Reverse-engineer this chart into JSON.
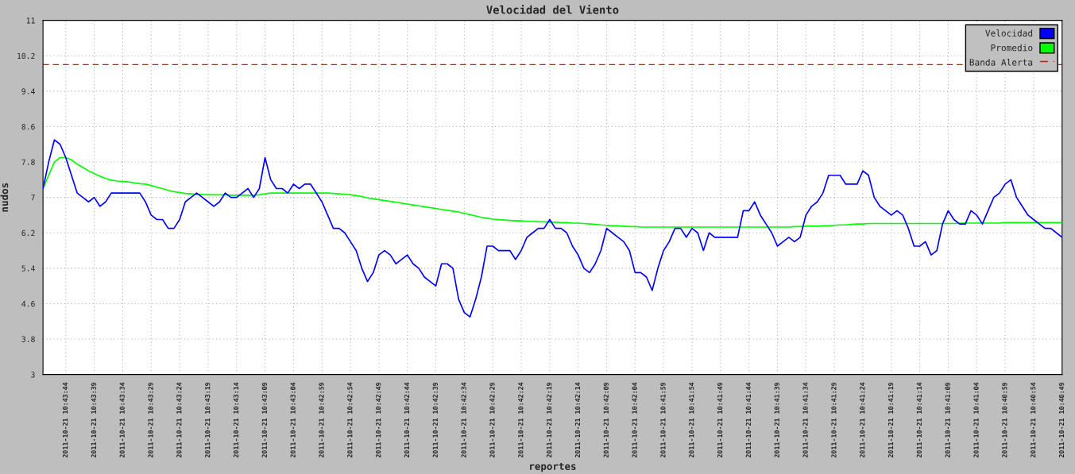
{
  "chart_data": {
    "type": "line",
    "title": "Velocidad del Viento",
    "xlabel": "reportes",
    "ylabel": "nudos",
    "categories": [
      null,
      null,
      null,
      null,
      "2011-10-21 10:43:44",
      null,
      null,
      null,
      null,
      "2011-10-21 10:43:39",
      null,
      null,
      null,
      null,
      "2011-10-21 10:43:34",
      null,
      null,
      null,
      null,
      "2011-10-21 10:43:29",
      null,
      null,
      null,
      null,
      "2011-10-21 10:43:24",
      null,
      null,
      null,
      null,
      "2011-10-21 10:43:19",
      null,
      null,
      null,
      null,
      "2011-10-21 10:43:14",
      null,
      null,
      null,
      null,
      "2011-10-21 10:43:09",
      null,
      null,
      null,
      null,
      "2011-10-21 10:43:04",
      null,
      null,
      null,
      null,
      "2011-10-21 10:42:59",
      null,
      null,
      null,
      null,
      "2011-10-21 10:42:54",
      null,
      null,
      null,
      null,
      "2011-10-21 10:42:49",
      null,
      null,
      null,
      null,
      "2011-10-21 10:42:44",
      null,
      null,
      null,
      null,
      "2011-10-21 10:42:39",
      null,
      null,
      null,
      null,
      "2011-10-21 10:42:34",
      null,
      null,
      null,
      null,
      "2011-10-21 10:42:29",
      null,
      null,
      null,
      null,
      "2011-10-21 10:42:24",
      null,
      null,
      null,
      null,
      "2011-10-21 10:42:19",
      null,
      null,
      null,
      null,
      "2011-10-21 10:42:14",
      null,
      null,
      null,
      null,
      "2011-10-21 10:42:09",
      null,
      null,
      null,
      null,
      "2011-10-21 10:42:04",
      null,
      null,
      null,
      null,
      "2011-10-21 10:41:59",
      null,
      null,
      null,
      null,
      "2011-10-21 10:41:54",
      null,
      null,
      null,
      null,
      "2011-10-21 10:41:49",
      null,
      null,
      null,
      null,
      "2011-10-21 10:41:44",
      null,
      null,
      null,
      null,
      "2011-10-21 10:41:39",
      null,
      null,
      null,
      null,
      "2011-10-21 10:41:34",
      null,
      null,
      null,
      null,
      "2011-10-21 10:41:29",
      null,
      null,
      null,
      null,
      "2011-10-21 10:41:24",
      null,
      null,
      null,
      null,
      "2011-10-21 10:41:19",
      null,
      null,
      null,
      null,
      "2011-10-21 10:41:14",
      null,
      null,
      null,
      null,
      "2011-10-21 10:41:09",
      null,
      null,
      null,
      null,
      "2011-10-21 10:41:04",
      null,
      null,
      null,
      null,
      "2011-10-21 10:40:59",
      null,
      null,
      null,
      null,
      "2011-10-21 10:40:54",
      null,
      null,
      null,
      null,
      "2011-10-21 10:40:49"
    ],
    "series": [
      {
        "name": "Velocidad",
        "color": "#0000ff",
        "values": [
          7.2,
          7.8,
          8.3,
          8.2,
          7.9,
          7.5,
          7.1,
          7.0,
          6.9,
          7.0,
          6.8,
          6.9,
          7.1,
          7.1,
          7.1,
          7.1,
          7.1,
          7.1,
          6.9,
          6.6,
          6.5,
          6.5,
          6.3,
          6.3,
          6.5,
          6.9,
          7.0,
          7.1,
          7.0,
          6.9,
          6.8,
          6.9,
          7.1,
          7.0,
          7.0,
          7.1,
          7.2,
          7.0,
          7.2,
          7.9,
          7.4,
          7.2,
          7.2,
          7.1,
          7.3,
          7.2,
          7.3,
          7.3,
          7.1,
          6.9,
          6.6,
          6.3,
          6.3,
          6.2,
          6.0,
          5.8,
          5.4,
          5.1,
          5.3,
          5.7,
          5.8,
          5.7,
          5.5,
          5.6,
          5.7,
          5.5,
          5.4,
          5.2,
          5.1,
          5.0,
          5.5,
          5.5,
          5.4,
          4.7,
          4.4,
          4.3,
          4.7,
          5.2,
          5.9,
          5.9,
          5.8,
          5.8,
          5.8,
          5.6,
          5.8,
          6.1,
          6.2,
          6.3,
          6.3,
          6.5,
          6.3,
          6.3,
          6.2,
          5.9,
          5.7,
          5.4,
          5.3,
          5.5,
          5.8,
          6.3,
          6.2,
          6.1,
          6.0,
          5.8,
          5.3,
          5.3,
          5.2,
          4.9,
          5.4,
          5.8,
          6.0,
          6.3,
          6.3,
          6.1,
          6.3,
          6.2,
          5.8,
          6.2,
          6.1,
          6.1,
          6.1,
          6.1,
          6.1,
          6.7,
          6.7,
          6.9,
          6.6,
          6.4,
          6.2,
          5.9,
          6.0,
          6.1,
          6.0,
          6.1,
          6.6,
          6.8,
          6.9,
          7.1,
          7.5,
          7.5,
          7.5,
          7.3,
          7.3,
          7.3,
          7.6,
          7.5,
          7.0,
          6.8,
          6.7,
          6.6,
          6.7,
          6.6,
          6.3,
          5.9,
          5.9,
          6.0,
          5.7,
          5.8,
          6.4,
          6.7,
          6.5,
          6.4,
          6.4,
          6.7,
          6.6,
          6.4,
          6.7,
          7.0,
          7.1,
          7.3,
          7.4,
          7.0,
          6.8,
          6.6,
          6.5,
          6.4,
          6.3,
          6.3,
          6.2,
          6.1
        ]
      },
      {
        "name": "Promedio",
        "color": "#00ff00",
        "values": [
          7.2,
          7.5,
          7.8,
          7.9,
          7.9,
          7.85,
          7.75,
          7.68,
          7.6,
          7.54,
          7.48,
          7.43,
          7.39,
          7.37,
          7.36,
          7.35,
          7.33,
          7.31,
          7.3,
          7.27,
          7.23,
          7.2,
          7.16,
          7.13,
          7.11,
          7.09,
          7.08,
          7.07,
          7.07,
          7.06,
          7.06,
          7.06,
          7.06,
          7.05,
          7.05,
          7.05,
          7.05,
          7.05,
          7.06,
          7.08,
          7.1,
          7.1,
          7.1,
          7.1,
          7.1,
          7.1,
          7.1,
          7.1,
          7.1,
          7.1,
          7.1,
          7.09,
          7.08,
          7.07,
          7.06,
          7.04,
          7.02,
          6.99,
          6.97,
          6.95,
          6.93,
          6.91,
          6.89,
          6.87,
          6.85,
          6.83,
          6.81,
          6.79,
          6.77,
          6.75,
          6.73,
          6.71,
          6.69,
          6.67,
          6.64,
          6.61,
          6.58,
          6.55,
          6.53,
          6.51,
          6.5,
          6.49,
          6.48,
          6.47,
          6.47,
          6.46,
          6.46,
          6.45,
          6.45,
          6.44,
          6.44,
          6.43,
          6.43,
          6.42,
          6.42,
          6.41,
          6.4,
          6.39,
          6.38,
          6.37,
          6.36,
          6.36,
          6.35,
          6.34,
          6.34,
          6.33,
          6.33,
          6.33,
          6.33,
          6.33,
          6.33,
          6.33,
          6.33,
          6.33,
          6.33,
          6.33,
          6.33,
          6.33,
          6.33,
          6.33,
          6.33,
          6.33,
          6.33,
          6.33,
          6.33,
          6.33,
          6.33,
          6.33,
          6.33,
          6.33,
          6.33,
          6.33,
          6.34,
          6.34,
          6.35,
          6.35,
          6.35,
          6.36,
          6.36,
          6.37,
          6.38,
          6.38,
          6.39,
          6.4,
          6.4,
          6.41,
          6.41,
          6.41,
          6.41,
          6.41,
          6.41,
          6.41,
          6.41,
          6.41,
          6.41,
          6.41,
          6.41,
          6.41,
          6.41,
          6.41,
          6.41,
          6.42,
          6.42,
          6.42,
          6.42,
          6.42,
          6.42,
          6.42,
          6.42,
          6.43,
          6.43,
          6.43,
          6.43,
          6.43,
          6.43,
          6.43,
          6.43,
          6.43,
          6.43,
          6.43
        ]
      }
    ],
    "ref_lines": [
      {
        "axis": "y",
        "value": 10,
        "label": "Banda Alerta",
        "color": "#ff0000",
        "line_style": "dashed"
      }
    ],
    "ylim": [
      3,
      11
    ],
    "yticks": [
      3,
      3.8,
      4.6,
      5.4,
      6.2,
      7,
      7.8,
      8.6,
      9.4,
      10.2,
      11
    ],
    "grid": true,
    "legend": "top right",
    "line_style": "solid"
  }
}
